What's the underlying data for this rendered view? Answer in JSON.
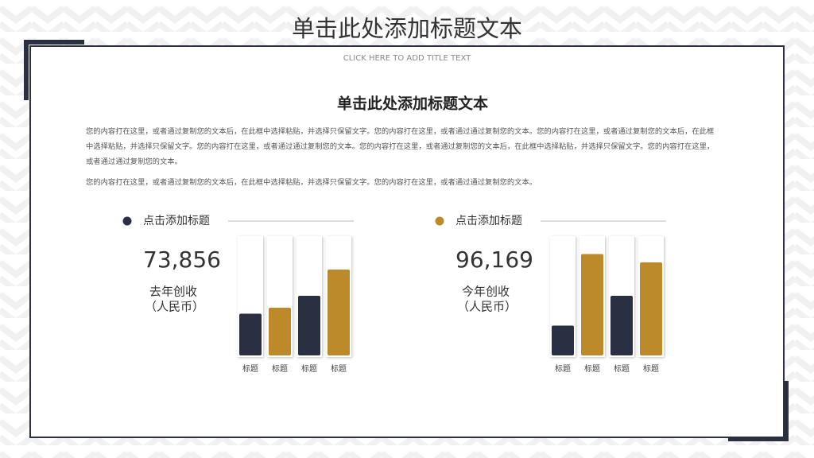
{
  "header": {
    "title": "单击此处添加标题文本",
    "subtitle": "CLICK HERE TO ADD TITLE TEXT"
  },
  "content": {
    "heading": "单击此处添加标题文本",
    "paragraphs": [
      "您的内容打在这里，或者通过复制您的文本后，在此框中选择粘贴，并选择只保留文字。您的内容打在这里，或者通过通过复制您的文本。您的内容打在这里，或者通过复制您的文本后，在此框中选择粘贴，并选择只保留文字。您的内容打在这里，或者通过通过复制您的文本。您的内容打在这里，或者通过复制您的文本后，在此框中选择粘贴，并选择只保留文字。您的内容打在这里，或者通过通过复制您的文本。",
      "您的内容打在这里，或者通过复制您的文本后，在此框中选择粘贴，并选择只保留文字。您的内容打在这里，或者通过通过复制您的文本。"
    ]
  },
  "chart_data": [
    {
      "type": "bar",
      "title": "点击添加标题",
      "marker_color": "#2b2f42",
      "figure": "73,856",
      "caption": [
        "去年创收",
        "（人民币）"
      ],
      "categories": [
        "标题",
        "标题",
        "标题",
        "标题"
      ],
      "values": [
        35,
        40,
        50,
        72
      ],
      "colors": [
        "#2b2f42",
        "#bc8a2a",
        "#2b2f42",
        "#bc8a2a"
      ],
      "ylim": [
        0,
        100
      ]
    },
    {
      "type": "bar",
      "title": "点击添加标题",
      "marker_color": "#bc8a2a",
      "figure": "96,169",
      "caption": [
        "今年创收",
        "（人民币）"
      ],
      "categories": [
        "标题",
        "标题",
        "标题",
        "标题"
      ],
      "values": [
        25,
        85,
        50,
        78
      ],
      "colors": [
        "#2b2f42",
        "#bc8a2a",
        "#2b2f42",
        "#bc8a2a"
      ],
      "ylim": [
        0,
        100
      ]
    }
  ]
}
